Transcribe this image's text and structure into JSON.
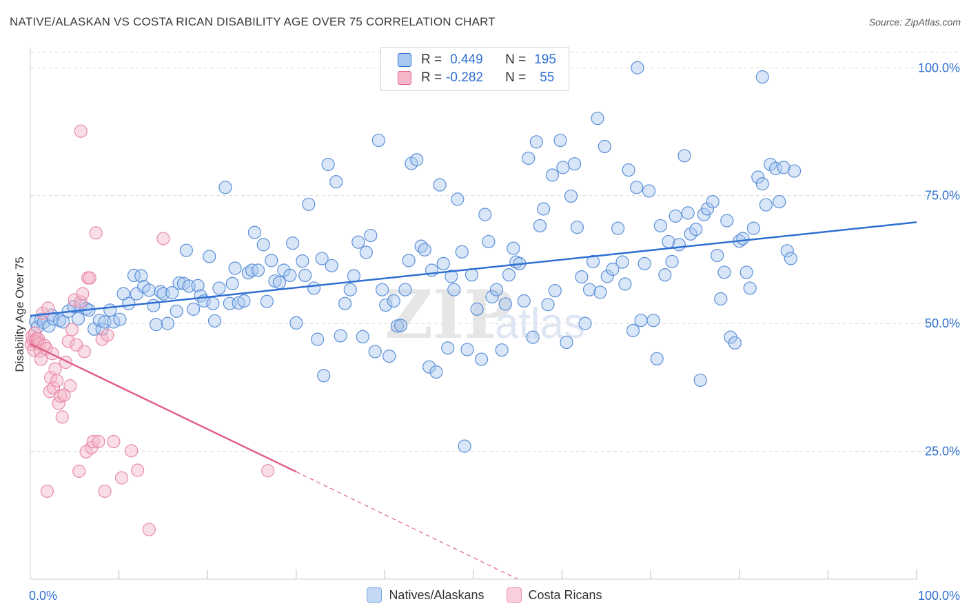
{
  "title": "NATIVE/ALASKAN VS COSTA RICAN DISABILITY AGE OVER 75 CORRELATION CHART",
  "source": "Source: ZipAtlas.com",
  "watermark": "ZIPatlas",
  "legend": {
    "rows": [
      {
        "r_label": "R =",
        "r_value": "0.449",
        "n_label": "N =",
        "n_value": "195",
        "color": "#a8c8f0"
      },
      {
        "r_label": "R =",
        "r_value": "-0.282",
        "n_label": "N =",
        "n_value": "55",
        "color": "#f5b6c8"
      }
    ]
  },
  "bottom_legend": [
    {
      "label": "Natives/Alaskans",
      "color": "#a8c8f0"
    },
    {
      "label": "Costa Ricans",
      "color": "#f5b6c8"
    }
  ],
  "colors": {
    "blue": "#2e6fd1",
    "blue_fill": "#a8c8f0",
    "pink": "#e0608a",
    "pink_fill": "#f5b6c8",
    "grid": "#d9d9d9",
    "tick_label": "#2e6fd1"
  },
  "chart_data": {
    "type": "scatter",
    "title": "NATIVE/ALASKAN VS COSTA RICAN DISABILITY AGE OVER 75 CORRELATION CHART",
    "xlabel": "",
    "ylabel": "Disability Age Over 75",
    "xlim": [
      0,
      100
    ],
    "ylim": [
      0,
      103
    ],
    "x_tick_labels": [
      "0.0%",
      "100.0%"
    ],
    "y_ticks": [
      25,
      50,
      75,
      100
    ],
    "y_tick_labels": [
      "25.0%",
      "50.0%",
      "75.0%",
      "100.0%"
    ],
    "grid": true,
    "legend_position": "top-center",
    "series": [
      {
        "name": "Natives/Alaskans",
        "trend": {
          "x": [
            0,
            100
          ],
          "y": [
            51.5,
            69.8
          ]
        },
        "points": [
          [
            0.6,
            50.4
          ],
          [
            0.8,
            49.3
          ],
          [
            1.2,
            50.8
          ],
          [
            1.5,
            50.2
          ],
          [
            2.1,
            49.5
          ],
          [
            2.4,
            51.6
          ],
          [
            2.6,
            50.9
          ],
          [
            3.3,
            50.6
          ],
          [
            3.7,
            50.3
          ],
          [
            4.3,
            52.4
          ],
          [
            4.9,
            53.3
          ],
          [
            5.4,
            50.9
          ],
          [
            5.7,
            53.5
          ],
          [
            6.3,
            52.9
          ],
          [
            6.6,
            52.6
          ],
          [
            7.2,
            48.9
          ],
          [
            7.8,
            50.6
          ],
          [
            8.1,
            48.9
          ],
          [
            8.4,
            50.3
          ],
          [
            9.0,
            52.6
          ],
          [
            9.4,
            50.3
          ],
          [
            10.1,
            50.8
          ],
          [
            10.5,
            55.8
          ],
          [
            11.1,
            53.9
          ],
          [
            11.7,
            59.4
          ],
          [
            12.0,
            55.8
          ],
          [
            12.5,
            59.3
          ],
          [
            12.8,
            57.2
          ],
          [
            13.4,
            56.5
          ],
          [
            13.9,
            53.5
          ],
          [
            14.2,
            49.8
          ],
          [
            14.7,
            56.2
          ],
          [
            15.0,
            55.8
          ],
          [
            15.5,
            50.0
          ],
          [
            16.0,
            56.0
          ],
          [
            16.5,
            52.4
          ],
          [
            16.8,
            57.9
          ],
          [
            17.3,
            57.8
          ],
          [
            17.6,
            64.3
          ],
          [
            17.9,
            57.3
          ],
          [
            18.4,
            52.8
          ],
          [
            18.9,
            57.4
          ],
          [
            19.2,
            55.4
          ],
          [
            19.6,
            54.4
          ],
          [
            20.2,
            63.1
          ],
          [
            20.6,
            53.9
          ],
          [
            20.8,
            50.5
          ],
          [
            21.3,
            56.9
          ],
          [
            22.0,
            76.6
          ],
          [
            22.5,
            53.9
          ],
          [
            22.8,
            57.8
          ],
          [
            23.1,
            60.8
          ],
          [
            23.5,
            54.0
          ],
          [
            24.1,
            54.4
          ],
          [
            24.6,
            59.9
          ],
          [
            25.0,
            60.4
          ],
          [
            25.3,
            67.8
          ],
          [
            25.7,
            60.4
          ],
          [
            26.3,
            65.4
          ],
          [
            26.7,
            54.3
          ],
          [
            27.2,
            62.3
          ],
          [
            27.6,
            58.3
          ],
          [
            28.1,
            58.0
          ],
          [
            28.6,
            60.4
          ],
          [
            29.3,
            59.4
          ],
          [
            29.6,
            65.7
          ],
          [
            30.0,
            50.1
          ],
          [
            30.7,
            62.2
          ],
          [
            31.0,
            59.4
          ],
          [
            31.4,
            73.3
          ],
          [
            32.0,
            56.9
          ],
          [
            32.4,
            46.9
          ],
          [
            32.9,
            62.7
          ],
          [
            33.1,
            39.8
          ],
          [
            33.6,
            81.1
          ],
          [
            34.0,
            61.3
          ],
          [
            34.5,
            77.7
          ],
          [
            35.0,
            47.6
          ],
          [
            35.5,
            53.9
          ],
          [
            36.1,
            56.6
          ],
          [
            36.5,
            59.3
          ],
          [
            37.0,
            65.9
          ],
          [
            37.5,
            47.4
          ],
          [
            37.9,
            63.9
          ],
          [
            38.4,
            67.2
          ],
          [
            38.9,
            44.5
          ],
          [
            39.3,
            85.8
          ],
          [
            39.7,
            56.6
          ],
          [
            40.1,
            53.6
          ],
          [
            40.5,
            43.6
          ],
          [
            41.0,
            54.4
          ],
          [
            41.4,
            49.5
          ],
          [
            41.8,
            49.6
          ],
          [
            42.3,
            56.6
          ],
          [
            42.7,
            62.3
          ],
          [
            43.0,
            81.3
          ],
          [
            43.6,
            82.0
          ],
          [
            44.1,
            65.1
          ],
          [
            44.5,
            64.4
          ],
          [
            45.0,
            41.5
          ],
          [
            45.3,
            60.4
          ],
          [
            45.8,
            40.5
          ],
          [
            46.2,
            77.1
          ],
          [
            46.6,
            61.7
          ],
          [
            47.1,
            45.2
          ],
          [
            47.5,
            59.2
          ],
          [
            47.8,
            56.6
          ],
          [
            48.2,
            74.3
          ],
          [
            48.7,
            64.0
          ],
          [
            49.0,
            26.0
          ],
          [
            49.3,
            44.9
          ],
          [
            49.8,
            59.5
          ],
          [
            50.4,
            52.8
          ],
          [
            50.9,
            43.0
          ],
          [
            51.3,
            71.3
          ],
          [
            51.7,
            66.0
          ],
          [
            52.1,
            55.2
          ],
          [
            52.6,
            56.6
          ],
          [
            53.2,
            44.8
          ],
          [
            53.6,
            53.8
          ],
          [
            54.0,
            59.5
          ],
          [
            54.5,
            64.7
          ],
          [
            54.8,
            62.0
          ],
          [
            55.2,
            61.7
          ],
          [
            55.7,
            54.4
          ],
          [
            56.2,
            82.3
          ],
          [
            56.7,
            47.3
          ],
          [
            57.1,
            85.5
          ],
          [
            57.5,
            69.1
          ],
          [
            57.9,
            72.4
          ],
          [
            58.4,
            53.7
          ],
          [
            58.9,
            79.0
          ],
          [
            59.2,
            56.4
          ],
          [
            59.8,
            85.8
          ],
          [
            60.1,
            80.5
          ],
          [
            60.5,
            46.3
          ],
          [
            61.0,
            74.9
          ],
          [
            61.4,
            81.2
          ],
          [
            61.7,
            68.8
          ],
          [
            62.2,
            59.1
          ],
          [
            62.6,
            50.0
          ],
          [
            63.1,
            56.6
          ],
          [
            63.5,
            62.1
          ],
          [
            64.0,
            90.1
          ],
          [
            64.3,
            56.1
          ],
          [
            64.8,
            84.6
          ],
          [
            65.1,
            59.2
          ],
          [
            65.7,
            60.6
          ],
          [
            66.3,
            68.6
          ],
          [
            66.8,
            62.0
          ],
          [
            67.1,
            57.7
          ],
          [
            67.5,
            80.0
          ],
          [
            68.0,
            48.6
          ],
          [
            68.4,
            76.6
          ],
          [
            68.9,
            50.6
          ],
          [
            69.3,
            61.7
          ],
          [
            69.8,
            75.9
          ],
          [
            70.3,
            50.6
          ],
          [
            70.7,
            43.1
          ],
          [
            71.1,
            69.1
          ],
          [
            71.6,
            59.5
          ],
          [
            72.0,
            66.0
          ],
          [
            72.4,
            62.1
          ],
          [
            72.8,
            71.0
          ],
          [
            73.2,
            65.4
          ],
          [
            73.8,
            82.8
          ],
          [
            74.2,
            71.6
          ],
          [
            74.5,
            67.5
          ],
          [
            75.1,
            68.4
          ],
          [
            75.6,
            38.9
          ],
          [
            76.0,
            71.3
          ],
          [
            76.4,
            72.4
          ],
          [
            77.0,
            73.8
          ],
          [
            77.5,
            63.3
          ],
          [
            77.9,
            54.8
          ],
          [
            78.3,
            60.0
          ],
          [
            78.6,
            70.1
          ],
          [
            79.0,
            47.3
          ],
          [
            79.5,
            46.2
          ],
          [
            80.0,
            66.1
          ],
          [
            80.4,
            66.6
          ],
          [
            80.8,
            60.0
          ],
          [
            81.2,
            56.9
          ],
          [
            81.6,
            68.6
          ],
          [
            82.1,
            78.6
          ],
          [
            82.6,
            77.3
          ],
          [
            83.0,
            73.2
          ],
          [
            83.5,
            81.1
          ],
          [
            84.1,
            80.3
          ],
          [
            84.5,
            73.8
          ],
          [
            85.0,
            80.5
          ],
          [
            85.4,
            64.2
          ],
          [
            85.8,
            62.7
          ],
          [
            86.2,
            79.8
          ],
          [
            68.5,
            100.0
          ],
          [
            82.6,
            98.2
          ]
        ]
      },
      {
        "name": "Costa Ricans",
        "trend": {
          "x": [
            0,
            30
          ],
          "y": [
            46.0,
            21.0
          ],
          "dashed_to": {
            "x": 55,
            "y": 0
          }
        },
        "points": [
          [
            0.1,
            45.9
          ],
          [
            0.2,
            47.5
          ],
          [
            0.3,
            46.6
          ],
          [
            0.4,
            44.8
          ],
          [
            0.5,
            48.1
          ],
          [
            0.6,
            46.4
          ],
          [
            0.7,
            47.0
          ],
          [
            0.8,
            46.4
          ],
          [
            0.9,
            47.0
          ],
          [
            1.0,
            46.0
          ],
          [
            1.1,
            44.6
          ],
          [
            1.2,
            43.0
          ],
          [
            1.4,
            52.0
          ],
          [
            1.6,
            45.7
          ],
          [
            1.8,
            45.1
          ],
          [
            2.0,
            53.0
          ],
          [
            2.2,
            36.7
          ],
          [
            2.3,
            39.4
          ],
          [
            2.5,
            44.1
          ],
          [
            2.6,
            37.4
          ],
          [
            2.8,
            41.1
          ],
          [
            3.0,
            38.8
          ],
          [
            3.2,
            34.4
          ],
          [
            3.4,
            35.8
          ],
          [
            3.6,
            31.7
          ],
          [
            3.8,
            36.0
          ],
          [
            4.0,
            42.4
          ],
          [
            4.3,
            46.5
          ],
          [
            4.5,
            37.8
          ],
          [
            4.7,
            48.8
          ],
          [
            5.0,
            54.6
          ],
          [
            5.2,
            45.8
          ],
          [
            5.5,
            21.1
          ],
          [
            5.7,
            54.2
          ],
          [
            5.9,
            55.8
          ],
          [
            6.1,
            44.5
          ],
          [
            6.3,
            24.9
          ],
          [
            6.5,
            58.9
          ],
          [
            6.7,
            58.9
          ],
          [
            6.9,
            25.7
          ],
          [
            7.1,
            26.9
          ],
          [
            7.4,
            67.7
          ],
          [
            7.7,
            26.9
          ],
          [
            8.1,
            46.9
          ],
          [
            8.4,
            17.2
          ],
          [
            8.7,
            47.7
          ],
          [
            9.4,
            26.9
          ],
          [
            10.3,
            19.8
          ],
          [
            11.4,
            25.1
          ],
          [
            12.1,
            21.3
          ],
          [
            13.4,
            9.7
          ],
          [
            15.0,
            66.6
          ],
          [
            26.8,
            21.2
          ],
          [
            5.7,
            87.6
          ],
          [
            1.9,
            17.2
          ]
        ]
      }
    ]
  }
}
